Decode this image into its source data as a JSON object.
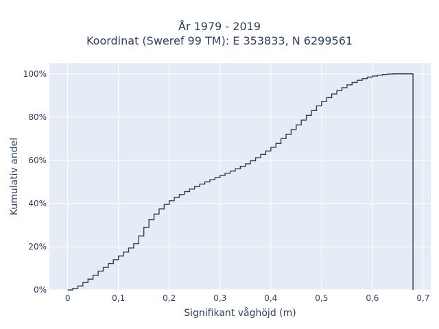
{
  "chart_data": {
    "type": "line",
    "subtype": "cumulative-step",
    "title": "År 1979 - 2019",
    "subtitle": "Koordinat (Sweref 99 TM): E 353833, N 6299561",
    "xlabel": "Signifikant våghöjd (m)",
    "ylabel": "Kumulativ andel",
    "xlim": [
      -0.036,
      0.715
    ],
    "ylim": [
      0,
      1.05
    ],
    "x_ticks": [
      0,
      0.1,
      0.2,
      0.3,
      0.4,
      0.5,
      0.6,
      0.7
    ],
    "x_tick_labels": [
      "0",
      "0,1",
      "0,2",
      "0,3",
      "0,4",
      "0,5",
      "0,6",
      "0,7"
    ],
    "y_ticks": [
      0,
      0.2,
      0.4,
      0.6,
      0.8,
      1.0
    ],
    "y_tick_labels": [
      "0%",
      "20%",
      "40%",
      "60%",
      "80%",
      "100%"
    ],
    "grid": true,
    "colors": {
      "line": "#2a3f5f",
      "plot_bg": "#e5ecf6",
      "grid": "#ffffff"
    },
    "x": [
      0.0,
      0.01,
      0.02,
      0.03,
      0.04,
      0.05,
      0.06,
      0.07,
      0.08,
      0.09,
      0.1,
      0.11,
      0.12,
      0.13,
      0.14,
      0.15,
      0.16,
      0.17,
      0.18,
      0.19,
      0.2,
      0.21,
      0.22,
      0.23,
      0.24,
      0.25,
      0.26,
      0.27,
      0.28,
      0.29,
      0.3,
      0.31,
      0.32,
      0.33,
      0.34,
      0.35,
      0.36,
      0.37,
      0.38,
      0.39,
      0.4,
      0.41,
      0.42,
      0.43,
      0.44,
      0.45,
      0.46,
      0.47,
      0.48,
      0.49,
      0.5,
      0.51,
      0.52,
      0.53,
      0.54,
      0.55,
      0.56,
      0.57,
      0.58,
      0.59,
      0.6,
      0.61,
      0.62,
      0.63,
      0.64,
      0.65,
      0.66,
      0.67,
      0.68
    ],
    "values": [
      0.0,
      0.007,
      0.018,
      0.034,
      0.05,
      0.068,
      0.087,
      0.104,
      0.122,
      0.14,
      0.157,
      0.175,
      0.194,
      0.214,
      0.25,
      0.29,
      0.325,
      0.351,
      0.375,
      0.396,
      0.413,
      0.428,
      0.442,
      0.455,
      0.467,
      0.479,
      0.49,
      0.5,
      0.51,
      0.52,
      0.53,
      0.54,
      0.55,
      0.561,
      0.572,
      0.584,
      0.598,
      0.612,
      0.627,
      0.643,
      0.66,
      0.678,
      0.7,
      0.72,
      0.742,
      0.764,
      0.786,
      0.808,
      0.83,
      0.852,
      0.872,
      0.89,
      0.907,
      0.922,
      0.936,
      0.949,
      0.96,
      0.97,
      0.978,
      0.985,
      0.99,
      0.994,
      0.997,
      0.999,
      1.0,
      1.0,
      1.0,
      1.0,
      1.0
    ]
  }
}
